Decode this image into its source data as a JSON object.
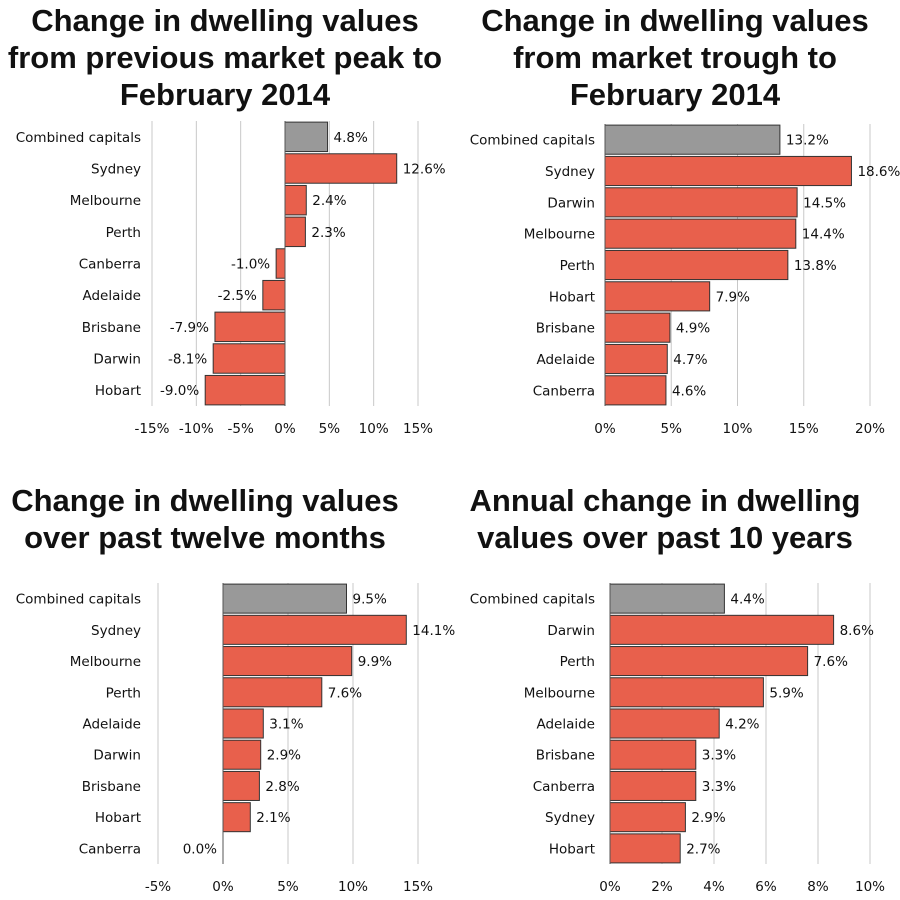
{
  "colors": {
    "bar": "#e8604c",
    "highlight": "#999999",
    "stroke": "#333333",
    "grid": "#c8c8c8"
  },
  "chart_data": [
    {
      "type": "bar",
      "orientation": "horizontal",
      "title": "Change in dwelling values from previous market peak to February 2014",
      "categories": [
        "Combined capitals",
        "Sydney",
        "Melbourne",
        "Perth",
        "Canberra",
        "Adelaide",
        "Brisbane",
        "Darwin",
        "Hobart"
      ],
      "values": [
        4.8,
        12.6,
        2.4,
        2.3,
        -1.0,
        -2.5,
        -7.9,
        -8.1,
        -9.0
      ],
      "value_labels": [
        "4.8%",
        "12.6%",
        "2.4%",
        "2.3%",
        "-1.0%",
        "-2.5%",
        "-7.9%",
        "-8.1%",
        "-9.0%"
      ],
      "highlight_category": "Combined capitals",
      "xlim": [
        -15,
        15
      ],
      "xticks": [
        -15,
        -10,
        -5,
        0,
        5,
        10,
        15
      ],
      "xtick_labels": [
        "-15%",
        "-10%",
        "-5%",
        "0%",
        "5%",
        "10%",
        "15%"
      ],
      "grid": true
    },
    {
      "type": "bar",
      "orientation": "horizontal",
      "title": "Change in dwelling values from market trough to February 2014",
      "categories": [
        "Combined capitals",
        "Sydney",
        "Darwin",
        "Melbourne",
        "Perth",
        "Hobart",
        "Brisbane",
        "Adelaide",
        "Canberra"
      ],
      "values": [
        13.2,
        18.6,
        14.5,
        14.4,
        13.8,
        7.9,
        4.9,
        4.7,
        4.6
      ],
      "value_labels": [
        "13.2%",
        "18.6%",
        "14.5%",
        "14.4%",
        "13.8%",
        "7.9%",
        "4.9%",
        "4.7%",
        "4.6%"
      ],
      "highlight_category": "Combined capitals",
      "xlim": [
        0,
        20
      ],
      "xticks": [
        0,
        5,
        10,
        15,
        20
      ],
      "xtick_labels": [
        "0%",
        "5%",
        "10%",
        "15%",
        "20%"
      ],
      "grid": true
    },
    {
      "type": "bar",
      "orientation": "horizontal",
      "title": "Change in dwelling values over past twelve months",
      "categories": [
        "Combined capitals",
        "Sydney",
        "Melbourne",
        "Perth",
        "Adelaide",
        "Darwin",
        "Brisbane",
        "Hobart",
        "Canberra"
      ],
      "values": [
        9.5,
        14.1,
        9.9,
        7.6,
        3.1,
        2.9,
        2.8,
        2.1,
        0.0
      ],
      "value_labels": [
        "9.5%",
        "14.1%",
        "9.9%",
        "7.6%",
        "3.1%",
        "2.9%",
        "2.8%",
        "2.1%",
        "0.0%"
      ],
      "highlight_category": "Combined capitals",
      "xlim": [
        -5,
        15
      ],
      "xticks": [
        -5,
        0,
        5,
        10,
        15
      ],
      "xtick_labels": [
        "-5%",
        "0%",
        "5%",
        "10%",
        "15%"
      ],
      "grid": true
    },
    {
      "type": "bar",
      "orientation": "horizontal",
      "title": "Annual change in dwelling values over past 10 years",
      "categories": [
        "Combined capitals",
        "Darwin",
        "Perth",
        "Melbourne",
        "Adelaide",
        "Brisbane",
        "Canberra",
        "Sydney",
        "Hobart"
      ],
      "values": [
        4.4,
        8.6,
        7.6,
        5.9,
        4.2,
        3.3,
        3.3,
        2.9,
        2.7
      ],
      "value_labels": [
        "4.4%",
        "8.6%",
        "7.6%",
        "5.9%",
        "4.2%",
        "3.3%",
        "3.3%",
        "2.9%",
        "2.7%"
      ],
      "highlight_category": "Combined capitals",
      "xlim": [
        0,
        10
      ],
      "xticks": [
        0,
        2,
        4,
        6,
        8,
        10
      ],
      "xtick_labels": [
        "0%",
        "2%",
        "4%",
        "6%",
        "8%",
        "10%"
      ],
      "grid": true
    }
  ]
}
